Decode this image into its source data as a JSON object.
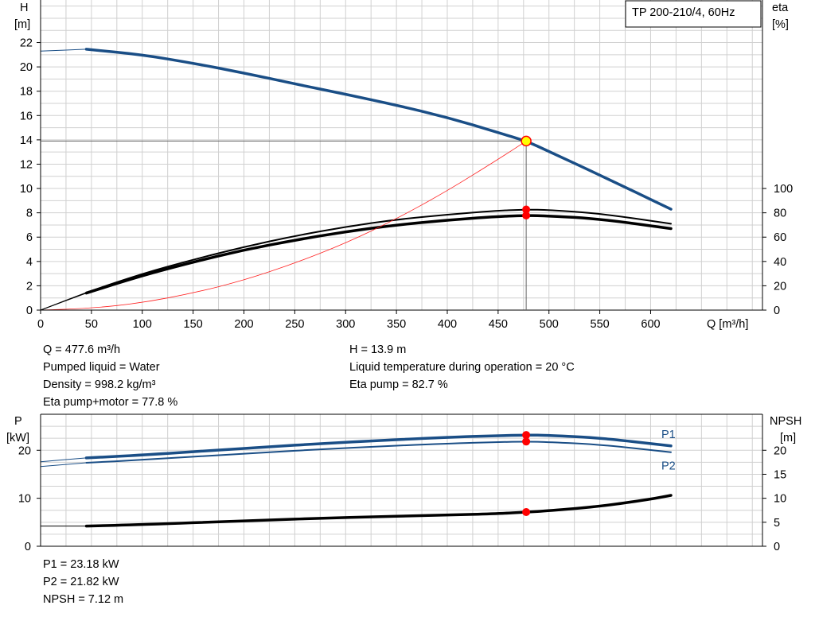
{
  "title": "TP 200-210/4, 60Hz",
  "chart_data": [
    {
      "type": "line",
      "name": "Head and efficiency",
      "xlabel": "Q [m³/h]",
      "ylabel_lines": [
        "H",
        "[m]"
      ],
      "y2label_lines": [
        "eta",
        "[%]"
      ],
      "xlim": [
        0,
        710
      ],
      "ylim": [
        0,
        25.5
      ],
      "y2lim": [
        0,
        255
      ],
      "x_ticks": [
        0,
        50,
        100,
        150,
        200,
        250,
        300,
        350,
        400,
        450,
        500,
        550,
        600
      ],
      "y_ticks": [
        0,
        2,
        4,
        6,
        8,
        10,
        12,
        14,
        16,
        18,
        20,
        22
      ],
      "y2_ticks": [
        0,
        20,
        40,
        60,
        80,
        100
      ],
      "grid": true,
      "series": [
        {
          "role": "head",
          "axis": "left",
          "color": "#1a4e86",
          "width": 3.5,
          "x": [
            0,
            45,
            100,
            150,
            200,
            250,
            300,
            350,
            400,
            450,
            477.6,
            500,
            550,
            620
          ],
          "y": [
            21.3,
            21.45,
            21.0,
            20.3,
            19.5,
            18.6,
            17.75,
            16.85,
            15.85,
            14.6,
            13.9,
            13.05,
            11.1,
            8.3
          ],
          "thin_until": 45
        },
        {
          "role": "eta-pump",
          "axis": "right",
          "color": "#000000",
          "width": 2,
          "x": [
            0,
            45,
            100,
            150,
            200,
            250,
            300,
            350,
            400,
            450,
            477.6,
            500,
            550,
            620
          ],
          "y": [
            0,
            14.5,
            30,
            41.5,
            52,
            61,
            68.5,
            74.5,
            78.5,
            81.8,
            82.7,
            82.3,
            79.5,
            71
          ],
          "thin_until": 45
        },
        {
          "role": "eta-pump-motor",
          "axis": "right",
          "color": "#000000",
          "width": 3.5,
          "x": [
            0,
            45,
            100,
            150,
            200,
            250,
            300,
            350,
            400,
            450,
            477.6,
            500,
            550,
            620
          ],
          "y": [
            0,
            14,
            28.5,
            39.5,
            49.5,
            57.5,
            64.5,
            70,
            74,
            77,
            77.8,
            77.5,
            75,
            67
          ],
          "thin_until": 45
        },
        {
          "role": "system-curve",
          "axis": "left",
          "color": "#ff2222",
          "width": 0.8,
          "x": [
            0,
            50,
            100,
            150,
            200,
            250,
            300,
            350,
            400,
            450,
            477.6
          ],
          "y": [
            0,
            0.15,
            0.6,
            1.4,
            2.45,
            3.85,
            5.5,
            7.5,
            9.8,
            12.4,
            13.9
          ]
        }
      ],
      "operating_point": {
        "q": 477.6,
        "h": 13.9,
        "eta_points": [
          82.7,
          77.8
        ]
      }
    },
    {
      "type": "line",
      "name": "Power and NPSH",
      "ylabel_lines": [
        "P",
        "[kW]"
      ],
      "y2label_lines": [
        "NPSH",
        "[m]"
      ],
      "xlim": [
        0,
        710
      ],
      "ylim": [
        0,
        27.5
      ],
      "y2lim": [
        0,
        27.5
      ],
      "y_ticks": [
        0,
        10,
        20
      ],
      "y2_ticks": [
        0,
        5,
        10,
        15,
        20
      ],
      "grid": true,
      "series": [
        {
          "name": "P1",
          "role": "p1",
          "axis": "left",
          "color": "#1a4e86",
          "width": 3.5,
          "x": [
            0,
            45,
            100,
            200,
            300,
            400,
            450,
            477.6,
            500,
            550,
            620
          ],
          "y": [
            17.6,
            18.4,
            19.0,
            20.4,
            21.7,
            22.7,
            23.05,
            23.18,
            23.1,
            22.6,
            20.9
          ],
          "thin_until": 45
        },
        {
          "name": "P2",
          "role": "p2",
          "axis": "left",
          "color": "#1a4e86",
          "width": 2,
          "x": [
            0,
            45,
            100,
            200,
            300,
            400,
            450,
            477.6,
            500,
            550,
            620
          ],
          "y": [
            16.6,
            17.4,
            18.0,
            19.3,
            20.5,
            21.4,
            21.7,
            21.82,
            21.7,
            21.2,
            19.6
          ],
          "thin_until": 45
        },
        {
          "name": "NPSH",
          "role": "npsh",
          "axis": "right",
          "color": "#000000",
          "width": 3.5,
          "x": [
            0,
            45,
            100,
            200,
            300,
            400,
            450,
            477.6,
            500,
            550,
            600,
            620
          ],
          "y": [
            4.2,
            4.2,
            4.5,
            5.3,
            6.0,
            6.5,
            6.8,
            7.12,
            7.4,
            8.3,
            9.8,
            10.6
          ],
          "thin_until": 45
        }
      ],
      "operating_point": {
        "q": 477.6,
        "values": [
          23.18,
          21.82,
          7.12
        ]
      }
    }
  ],
  "info_top_left": [
    "Q = 477.6 m³/h",
    "Pumped liquid = Water",
    "Density = 998.2 kg/m³",
    "Eta pump+motor = 77.8 %"
  ],
  "info_top_right": [
    "H = 13.9 m",
    "Liquid temperature during operation = 20 °C",
    "Eta pump = 82.7 %"
  ],
  "info_bottom": [
    "P1 = 23.18 kW",
    "P2 = 21.82 kW",
    "NPSH = 7.12 m"
  ],
  "colors": {
    "grid": "#d0d0d0",
    "axis": "#000000",
    "head": "#1a4e86",
    "marker": "#ff0000",
    "marker_highlight": "#ffff00",
    "crosshair": "#666666"
  }
}
